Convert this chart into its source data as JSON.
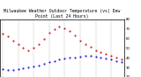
{
  "title": "Milwaukee Weather Outdoor Temperature (vs) Dew Point (Last 24 Hours)",
  "temp": [
    65,
    62,
    58,
    54,
    50,
    48,
    50,
    54,
    60,
    66,
    70,
    72,
    71,
    68,
    63,
    58,
    54,
    51,
    48,
    46,
    44,
    42,
    40,
    38
  ],
  "dew": [
    28,
    27,
    27,
    28,
    29,
    30,
    31,
    32,
    34,
    36,
    37,
    38,
    39,
    40,
    40,
    41,
    42,
    42,
    41,
    40,
    39,
    38,
    37,
    36
  ],
  "temp_color": "#cc0000",
  "dew_color": "#0000cc",
  "bg_color": "#ffffff",
  "grid_color": "#888888",
  "ylim": [
    20,
    80
  ],
  "yticks": [
    20,
    30,
    40,
    50,
    60,
    70,
    80
  ],
  "ytick_labels": [
    "20",
    "30",
    "40",
    "50",
    "60",
    "70",
    "80"
  ],
  "n_points": 24,
  "hours": [
    "12a",
    "1",
    "2",
    "3",
    "4",
    "5",
    "6",
    "7",
    "8",
    "9",
    "10",
    "11",
    "12p",
    "1",
    "2",
    "3",
    "4",
    "5",
    "6",
    "7",
    "8",
    "9",
    "10",
    "11"
  ],
  "title_fontsize": 3.5,
  "tick_fontsize": 2.8,
  "line_width": 0.6,
  "marker_size": 1.0
}
